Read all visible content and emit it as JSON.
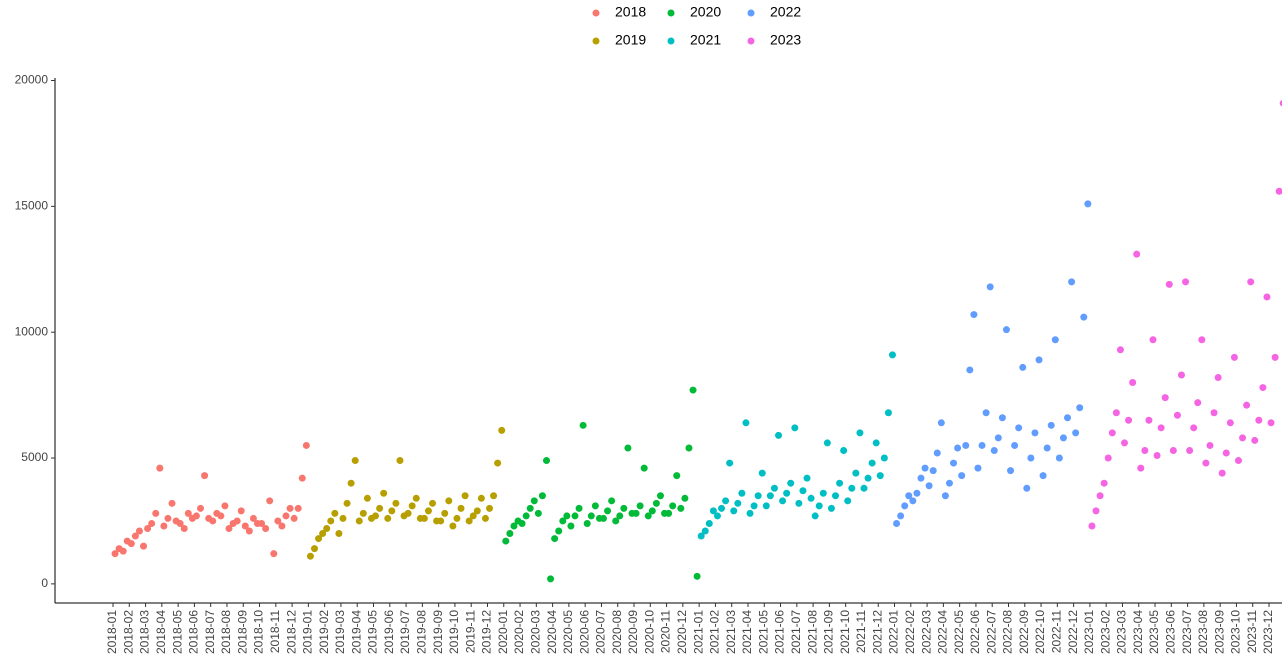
{
  "chart_data": {
    "type": "scatter",
    "categories": [
      "2018-01",
      "2018-02",
      "2018-03",
      "2018-04",
      "2018-05",
      "2018-06",
      "2018-07",
      "2018-08",
      "2018-09",
      "2018-10",
      "2018-11",
      "2018-12",
      "2019-01",
      "2019-02",
      "2019-03",
      "2019-04",
      "2019-05",
      "2019-06",
      "2019-07",
      "2019-08",
      "2019-09",
      "2019-10",
      "2019-11",
      "2019-12",
      "2020-01",
      "2020-02",
      "2020-03",
      "2020-04",
      "2020-05",
      "2020-06",
      "2020-07",
      "2020-08",
      "2020-09",
      "2020-10",
      "2020-11",
      "2020-12",
      "2021-01",
      "2021-02",
      "2021-03",
      "2021-04",
      "2021-05",
      "2021-06",
      "2021-07",
      "2021-08",
      "2021-09",
      "2021-10",
      "2021-11",
      "2021-12",
      "2022-01",
      "2022-02",
      "2022-03",
      "2022-04",
      "2022-05",
      "2022-06",
      "2022-07",
      "2022-08",
      "2022-09",
      "2022-10",
      "2022-11",
      "2022-12",
      "2023-01",
      "2023-02",
      "2023-03",
      "2023-04",
      "2023-05",
      "2023-06",
      "2023-07",
      "2023-08",
      "2023-09",
      "2023-10",
      "2023-11",
      "2023-12"
    ],
    "series": [
      {
        "name": "2018",
        "color": "#F8766D",
        "x": [
          "2018-01",
          "2018-02",
          "2018-03",
          "2018-04",
          "2018-05",
          "2018-06",
          "2018-07",
          "2018-08",
          "2018-09",
          "2018-10",
          "2018-11",
          "2018-12"
        ],
        "values": [
          [
            1200,
            1400,
            1300,
            1700
          ],
          [
            1600,
            1900,
            2100,
            1500
          ],
          [
            2200,
            2400,
            2800,
            4600
          ],
          [
            2300,
            2600,
            3200,
            2500
          ],
          [
            2400,
            2200,
            2800,
            2600
          ],
          [
            2700,
            3000,
            4300,
            2600
          ],
          [
            2500,
            2800,
            2700,
            3100
          ],
          [
            2200,
            2400,
            2500,
            2900
          ],
          [
            2300,
            2100,
            2600,
            2400
          ],
          [
            2400,
            2200,
            3300,
            1200
          ],
          [
            2500,
            2300,
            2700,
            3000
          ],
          [
            2600,
            3000,
            4200,
            5500
          ]
        ]
      },
      {
        "name": "2019",
        "color": "#B79F00",
        "x": [
          "2019-01",
          "2019-02",
          "2019-03",
          "2019-04",
          "2019-05",
          "2019-06",
          "2019-07",
          "2019-08",
          "2019-09",
          "2019-10",
          "2019-11",
          "2019-12"
        ],
        "values": [
          [
            1100,
            1400,
            1800,
            2000
          ],
          [
            2200,
            2500,
            2800,
            2000
          ],
          [
            2600,
            3200,
            4000,
            4900
          ],
          [
            2500,
            2800,
            3400,
            2600
          ],
          [
            2700,
            3000,
            3600,
            2600
          ],
          [
            2900,
            3200,
            4900,
            2700
          ],
          [
            2800,
            3100,
            3400,
            2600
          ],
          [
            2600,
            2900,
            3200,
            2500
          ],
          [
            2500,
            2800,
            3300,
            2300
          ],
          [
            2600,
            3000,
            3500,
            2500
          ],
          [
            2700,
            2900,
            3400,
            2600
          ],
          [
            3000,
            3500,
            4800,
            6100
          ]
        ]
      },
      {
        "name": "2020",
        "color": "#00BA38",
        "x": [
          "2020-01",
          "2020-02",
          "2020-03",
          "2020-04",
          "2020-05",
          "2020-06",
          "2020-07",
          "2020-08",
          "2020-09",
          "2020-10",
          "2020-11",
          "2020-12"
        ],
        "values": [
          [
            1700,
            2000,
            2300,
            2500
          ],
          [
            2400,
            2700,
            3000,
            3300
          ],
          [
            2800,
            3500,
            4900,
            200
          ],
          [
            1800,
            2100,
            2500,
            2700
          ],
          [
            2300,
            2700,
            3000,
            6300
          ],
          [
            2400,
            2700,
            3100,
            2600
          ],
          [
            2600,
            2900,
            3300,
            2500
          ],
          [
            2700,
            3000,
            5400,
            2800
          ],
          [
            2800,
            3100,
            4600,
            2700
          ],
          [
            2900,
            3200,
            3500,
            2800
          ],
          [
            2800,
            3100,
            4300,
            3000
          ],
          [
            3400,
            5400,
            7700,
            300
          ]
        ]
      },
      {
        "name": "2021",
        "color": "#00BFC4",
        "x": [
          "2021-01",
          "2021-02",
          "2021-03",
          "2021-04",
          "2021-05",
          "2021-06",
          "2021-07",
          "2021-08",
          "2021-09",
          "2021-10",
          "2021-11",
          "2021-12"
        ],
        "values": [
          [
            1900,
            2100,
            2400,
            2900
          ],
          [
            2700,
            3000,
            3300,
            4800
          ],
          [
            2900,
            3200,
            3600,
            6400
          ],
          [
            2800,
            3100,
            3500,
            4400
          ],
          [
            3100,
            3500,
            3800,
            5900
          ],
          [
            3300,
            3600,
            4000,
            6200
          ],
          [
            3200,
            3700,
            4200,
            3400
          ],
          [
            2700,
            3100,
            3600,
            5600
          ],
          [
            3000,
            3500,
            4000,
            5300
          ],
          [
            3300,
            3800,
            4400,
            6000
          ],
          [
            3800,
            4200,
            4800,
            5600
          ],
          [
            4300,
            5000,
            6800,
            9100
          ]
        ]
      },
      {
        "name": "2022",
        "color": "#619CFF",
        "x": [
          "2022-01",
          "2022-02",
          "2022-03",
          "2022-04",
          "2022-05",
          "2022-06",
          "2022-07",
          "2022-08",
          "2022-09",
          "2022-10",
          "2022-11",
          "2022-12"
        ],
        "values": [
          [
            2400,
            2700,
            3100,
            3500
          ],
          [
            3300,
            3600,
            4200,
            4600
          ],
          [
            3900,
            4500,
            5200,
            6400
          ],
          [
            3500,
            4000,
            4800,
            5400
          ],
          [
            4300,
            5500,
            8500,
            10700
          ],
          [
            4600,
            5500,
            6800,
            11800
          ],
          [
            5300,
            5800,
            6600,
            10100
          ],
          [
            4500,
            5500,
            6200,
            8600
          ],
          [
            3800,
            5000,
            6000,
            8900
          ],
          [
            4300,
            5400,
            6300,
            9700
          ],
          [
            5000,
            5800,
            6600,
            12000
          ],
          [
            6000,
            7000,
            10600,
            15100
          ]
        ]
      },
      {
        "name": "2023",
        "color": "#F564E3",
        "x": [
          "2023-01",
          "2023-02",
          "2023-03",
          "2023-04",
          "2023-05",
          "2023-06",
          "2023-07",
          "2023-08",
          "2023-09",
          "2023-10",
          "2023-11",
          "2023-12"
        ],
        "values": [
          [
            2300,
            2900,
            3500,
            4000
          ],
          [
            5000,
            6000,
            6800,
            9300
          ],
          [
            5600,
            6500,
            8000,
            13100
          ],
          [
            4600,
            5300,
            6500,
            9700
          ],
          [
            5100,
            6200,
            7400,
            11900
          ],
          [
            5300,
            6700,
            8300,
            12000
          ],
          [
            5300,
            6200,
            7200,
            9700
          ],
          [
            4800,
            5500,
            6800,
            8200
          ],
          [
            4400,
            5200,
            6400,
            9000
          ],
          [
            4900,
            5800,
            7100,
            12000
          ],
          [
            5700,
            6500,
            7800,
            11400
          ],
          [
            6400,
            9000,
            15600,
            19100
          ]
        ]
      }
    ],
    "ylim": [
      -760,
      20100
    ],
    "yticks": [
      0,
      5000,
      10000,
      15000,
      20000
    ],
    "grid": false,
    "legend": "top"
  }
}
